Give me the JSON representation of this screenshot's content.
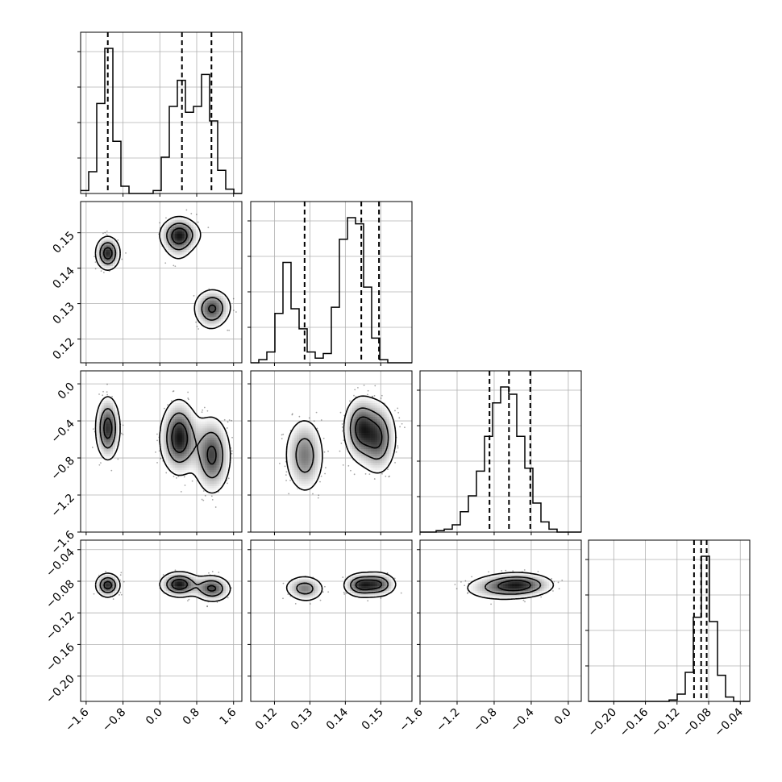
{
  "chart_data": {
    "type": "corner",
    "parameters": [
      {
        "range": [
          -1.72,
          1.78
        ],
        "ticks": [
          -1.6,
          -0.8,
          0.0,
          0.8,
          1.6
        ],
        "tick_labels": [
          "−1.6",
          "−0.8",
          "0.0",
          "0.8",
          "1.6"
        ]
      },
      {
        "range": [
          0.1133,
          0.1588
        ],
        "ticks": [
          0.12,
          0.13,
          0.14,
          0.15
        ],
        "tick_labels": [
          "0.12",
          "0.13",
          "0.14",
          "0.15"
        ]
      },
      {
        "range": [
          -1.6,
          0.14
        ],
        "ticks": [
          -1.6,
          -1.2,
          -0.8,
          -0.4,
          0.0
        ],
        "tick_labels": [
          "−1.6",
          "−1.2",
          "−0.8",
          "−0.4",
          "0.0"
        ]
      },
      {
        "range": [
          -0.232,
          -0.028
        ],
        "ticks": [
          -0.2,
          -0.16,
          -0.12,
          -0.08,
          -0.04
        ],
        "tick_labels": [
          "−0.20",
          "−0.16",
          "−0.12",
          "−0.08",
          "−0.04"
        ]
      }
    ],
    "histograms": [
      {
        "param": 0,
        "bin_start": -1.72,
        "bin_width": 0.175,
        "counts": [
          0.02,
          0.15,
          0.62,
          1.0,
          0.36,
          0.05,
          0.0,
          0.0,
          0.0,
          0.02,
          0.25,
          0.6,
          0.78,
          0.56,
          0.6,
          0.82,
          0.5,
          0.16,
          0.03,
          0.0
        ],
        "quantiles": [
          -1.13,
          0.48,
          1.12
        ]
      },
      {
        "param": 1,
        "bin_start": 0.1133,
        "bin_width": 0.002275,
        "counts": [
          0.0,
          0.02,
          0.07,
          0.32,
          0.65,
          0.35,
          0.22,
          0.07,
          0.03,
          0.06,
          0.36,
          0.8,
          0.94,
          0.9,
          0.49,
          0.16,
          0.02,
          0.0,
          0.0,
          0.0
        ],
        "quantiles": [
          0.1285,
          0.1445,
          0.1495
        ]
      },
      {
        "param": 2,
        "bin_start": -1.6,
        "bin_width": 0.087,
        "counts": [
          0.0,
          0.0,
          0.01,
          0.02,
          0.05,
          0.14,
          0.25,
          0.42,
          0.66,
          0.89,
          1.0,
          0.95,
          0.66,
          0.44,
          0.2,
          0.07,
          0.02,
          0.0,
          0.0,
          0.0
        ],
        "quantiles": [
          -0.85,
          -0.64,
          -0.41
        ]
      },
      {
        "param": 3,
        "bin_start": -0.232,
        "bin_width": 0.0102,
        "counts": [
          0.0,
          0.0,
          0.0,
          0.0,
          0.0,
          0.0,
          0.0,
          0.0,
          0.0,
          0.0,
          0.01,
          0.05,
          0.2,
          0.58,
          1.0,
          0.55,
          0.18,
          0.03,
          0.0,
          0.0
        ],
        "quantiles": [
          -0.0985,
          -0.0895,
          -0.0825
        ]
      }
    ],
    "modes": [
      {
        "c": [
          -1.13,
          0.1442,
          -0.48,
          -0.085
        ],
        "s": [
          0.14,
          0.0025,
          0.18,
          0.008
        ],
        "w": 0.33
      },
      {
        "c": [
          0.45,
          0.1495,
          -0.6,
          -0.084
        ],
        "s": [
          0.25,
          0.0025,
          0.2,
          0.0085
        ],
        "w": 0.22
      },
      {
        "c": [
          1.15,
          0.129,
          -0.78,
          -0.09
        ],
        "s": [
          0.22,
          0.0028,
          0.22,
          0.009
        ],
        "w": 0.22
      },
      {
        "c": [
          0.4,
          0.148,
          -0.55,
          -0.084
        ],
        "s": [
          0.18,
          0.0035,
          0.22,
          0.008
        ],
        "w": 0.15
      },
      {
        "c": [
          1.1,
          0.127,
          -0.75,
          -0.087
        ],
        "s": [
          0.18,
          0.003,
          0.22,
          0.008
        ],
        "w": 0.08
      }
    ],
    "pair_rotation_deg": {
      "2-1": -35,
      "3-2": 10,
      "3-1": -20,
      "2-0": 0,
      "3-0": 0,
      "1-0": 0
    },
    "contour_levels": [
      0.15,
      0.45,
      0.75
    ],
    "grid": true,
    "colors": {
      "ink": "#000000",
      "grid": "#b0b0b0",
      "background": "#ffffff"
    }
  }
}
